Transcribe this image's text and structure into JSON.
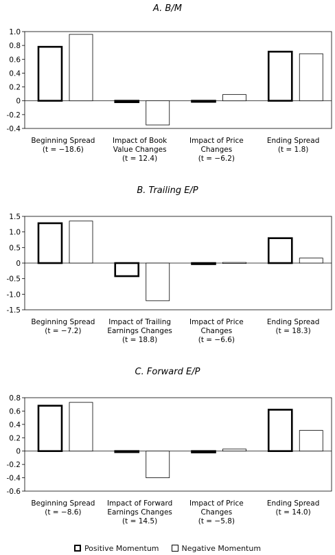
{
  "legend": {
    "positive": "Positive Momentum",
    "negative": "Negative Momentum"
  },
  "chart_data": [
    {
      "type": "bar",
      "title": "A. B/M",
      "ylim": [
        -0.4,
        1.0
      ],
      "yticks": [
        "1.0",
        "0.8",
        "0.6",
        "0.4",
        "0.2",
        "0",
        "-0.2",
        "-0.4"
      ],
      "ytick_values": [
        1.0,
        0.8,
        0.6,
        0.4,
        0.2,
        0,
        -0.2,
        -0.4
      ],
      "categories": [
        [
          "Beginning Spread",
          "(t = −18.6)"
        ],
        [
          "Impact of Book",
          "Value Changes",
          "(t = 12.4)"
        ],
        [
          "Impact of Price",
          "Changes",
          "(t = −6.2)"
        ],
        [
          "Ending Spread",
          "(t = 1.8)"
        ]
      ],
      "series": [
        {
          "name": "Positive Momentum",
          "values": [
            0.78,
            -0.02,
            -0.01,
            0.71
          ]
        },
        {
          "name": "Negative Momentum",
          "values": [
            0.96,
            -0.35,
            0.09,
            0.68
          ]
        }
      ]
    },
    {
      "type": "bar",
      "title": "B. Trailing E/P",
      "ylim": [
        -1.5,
        1.5
      ],
      "yticks": [
        "1.5",
        "1.0",
        "0.5",
        "0",
        "-0.5",
        "-1.0",
        "-1.5"
      ],
      "ytick_values": [
        1.5,
        1.0,
        0.5,
        0,
        -0.5,
        -1.0,
        -1.5
      ],
      "categories": [
        [
          "Beginning Spread",
          "(t = −7.2)"
        ],
        [
          "Impact of Trailing",
          "Earnings Changes",
          "(t = 18.8)"
        ],
        [
          "Impact of Price",
          "Changes",
          "(t = −6.6)"
        ],
        [
          "Ending Spread",
          "(t = 18.3)"
        ]
      ],
      "series": [
        {
          "name": "Positive Momentum",
          "values": [
            1.28,
            -0.42,
            -0.01,
            0.8
          ]
        },
        {
          "name": "Negative Momentum",
          "values": [
            1.35,
            -1.21,
            0.02,
            0.16
          ]
        }
      ]
    },
    {
      "type": "bar",
      "title": "C. Forward E/P",
      "ylim": [
        -0.6,
        0.8
      ],
      "yticks": [
        "0.8",
        "0.6",
        "0.4",
        "0.2",
        "0",
        "-0.2",
        "-0.4",
        "-0.6"
      ],
      "ytick_values": [
        0.8,
        0.6,
        0.4,
        0.2,
        0,
        -0.2,
        -0.4,
        -0.6
      ],
      "categories": [
        [
          "Beginning Spread",
          "(t = −8.6)"
        ],
        [
          "Impact of Forward",
          "Earnings Changes",
          "(t = 14.5)"
        ],
        [
          "Impact of Price",
          "Changes",
          "(t = −5.8)"
        ],
        [
          "Ending Spread",
          "(t = 14.0)"
        ]
      ],
      "series": [
        {
          "name": "Positive Momentum",
          "values": [
            0.68,
            -0.01,
            -0.02,
            0.62
          ]
        },
        {
          "name": "Negative Momentum",
          "values": [
            0.73,
            -0.4,
            0.03,
            0.31
          ]
        }
      ]
    }
  ]
}
